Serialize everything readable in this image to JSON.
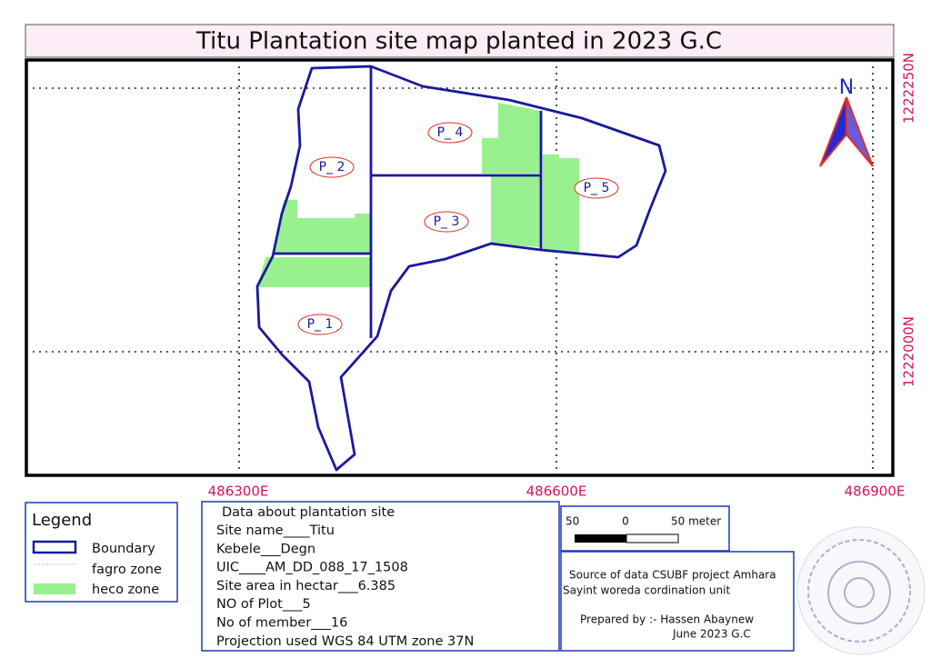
{
  "header": {
    "title": "Titu Plantation site map planted in 2023 G.C"
  },
  "grid": {
    "x_labels": [
      "486300E",
      "486600E",
      "486900E"
    ],
    "y_labels": [
      "1222250N",
      "1222000N"
    ]
  },
  "plots": [
    "P_ 1",
    "P_ 2",
    "P_ 3",
    "P_ 4",
    "P_ 5"
  ],
  "north": "N",
  "legend": {
    "title": "Legend",
    "items": [
      "Boundary",
      "fagro zone",
      "heco zone"
    ]
  },
  "info": {
    "title": "Data about plantation site",
    "lines": [
      "Site name____Titu",
      "Kebele___Degn",
      "UIC____AM_DD_088_17_1508",
      "Site area in hectar___6.385",
      "NO of Plot___5",
      "No of member___16",
      "Projection used     WGS 84 UTM zone 37N"
    ]
  },
  "scale": {
    "labels": [
      "50",
      "0",
      "50 meter"
    ]
  },
  "source": {
    "lines": [
      "Source of data CSUBF project Amhara",
      "Sayint woreda cordination unit"
    ],
    "prepared": "Prepared by :- Hassen Abaynew",
    "date": "June 2023 G.C"
  }
}
